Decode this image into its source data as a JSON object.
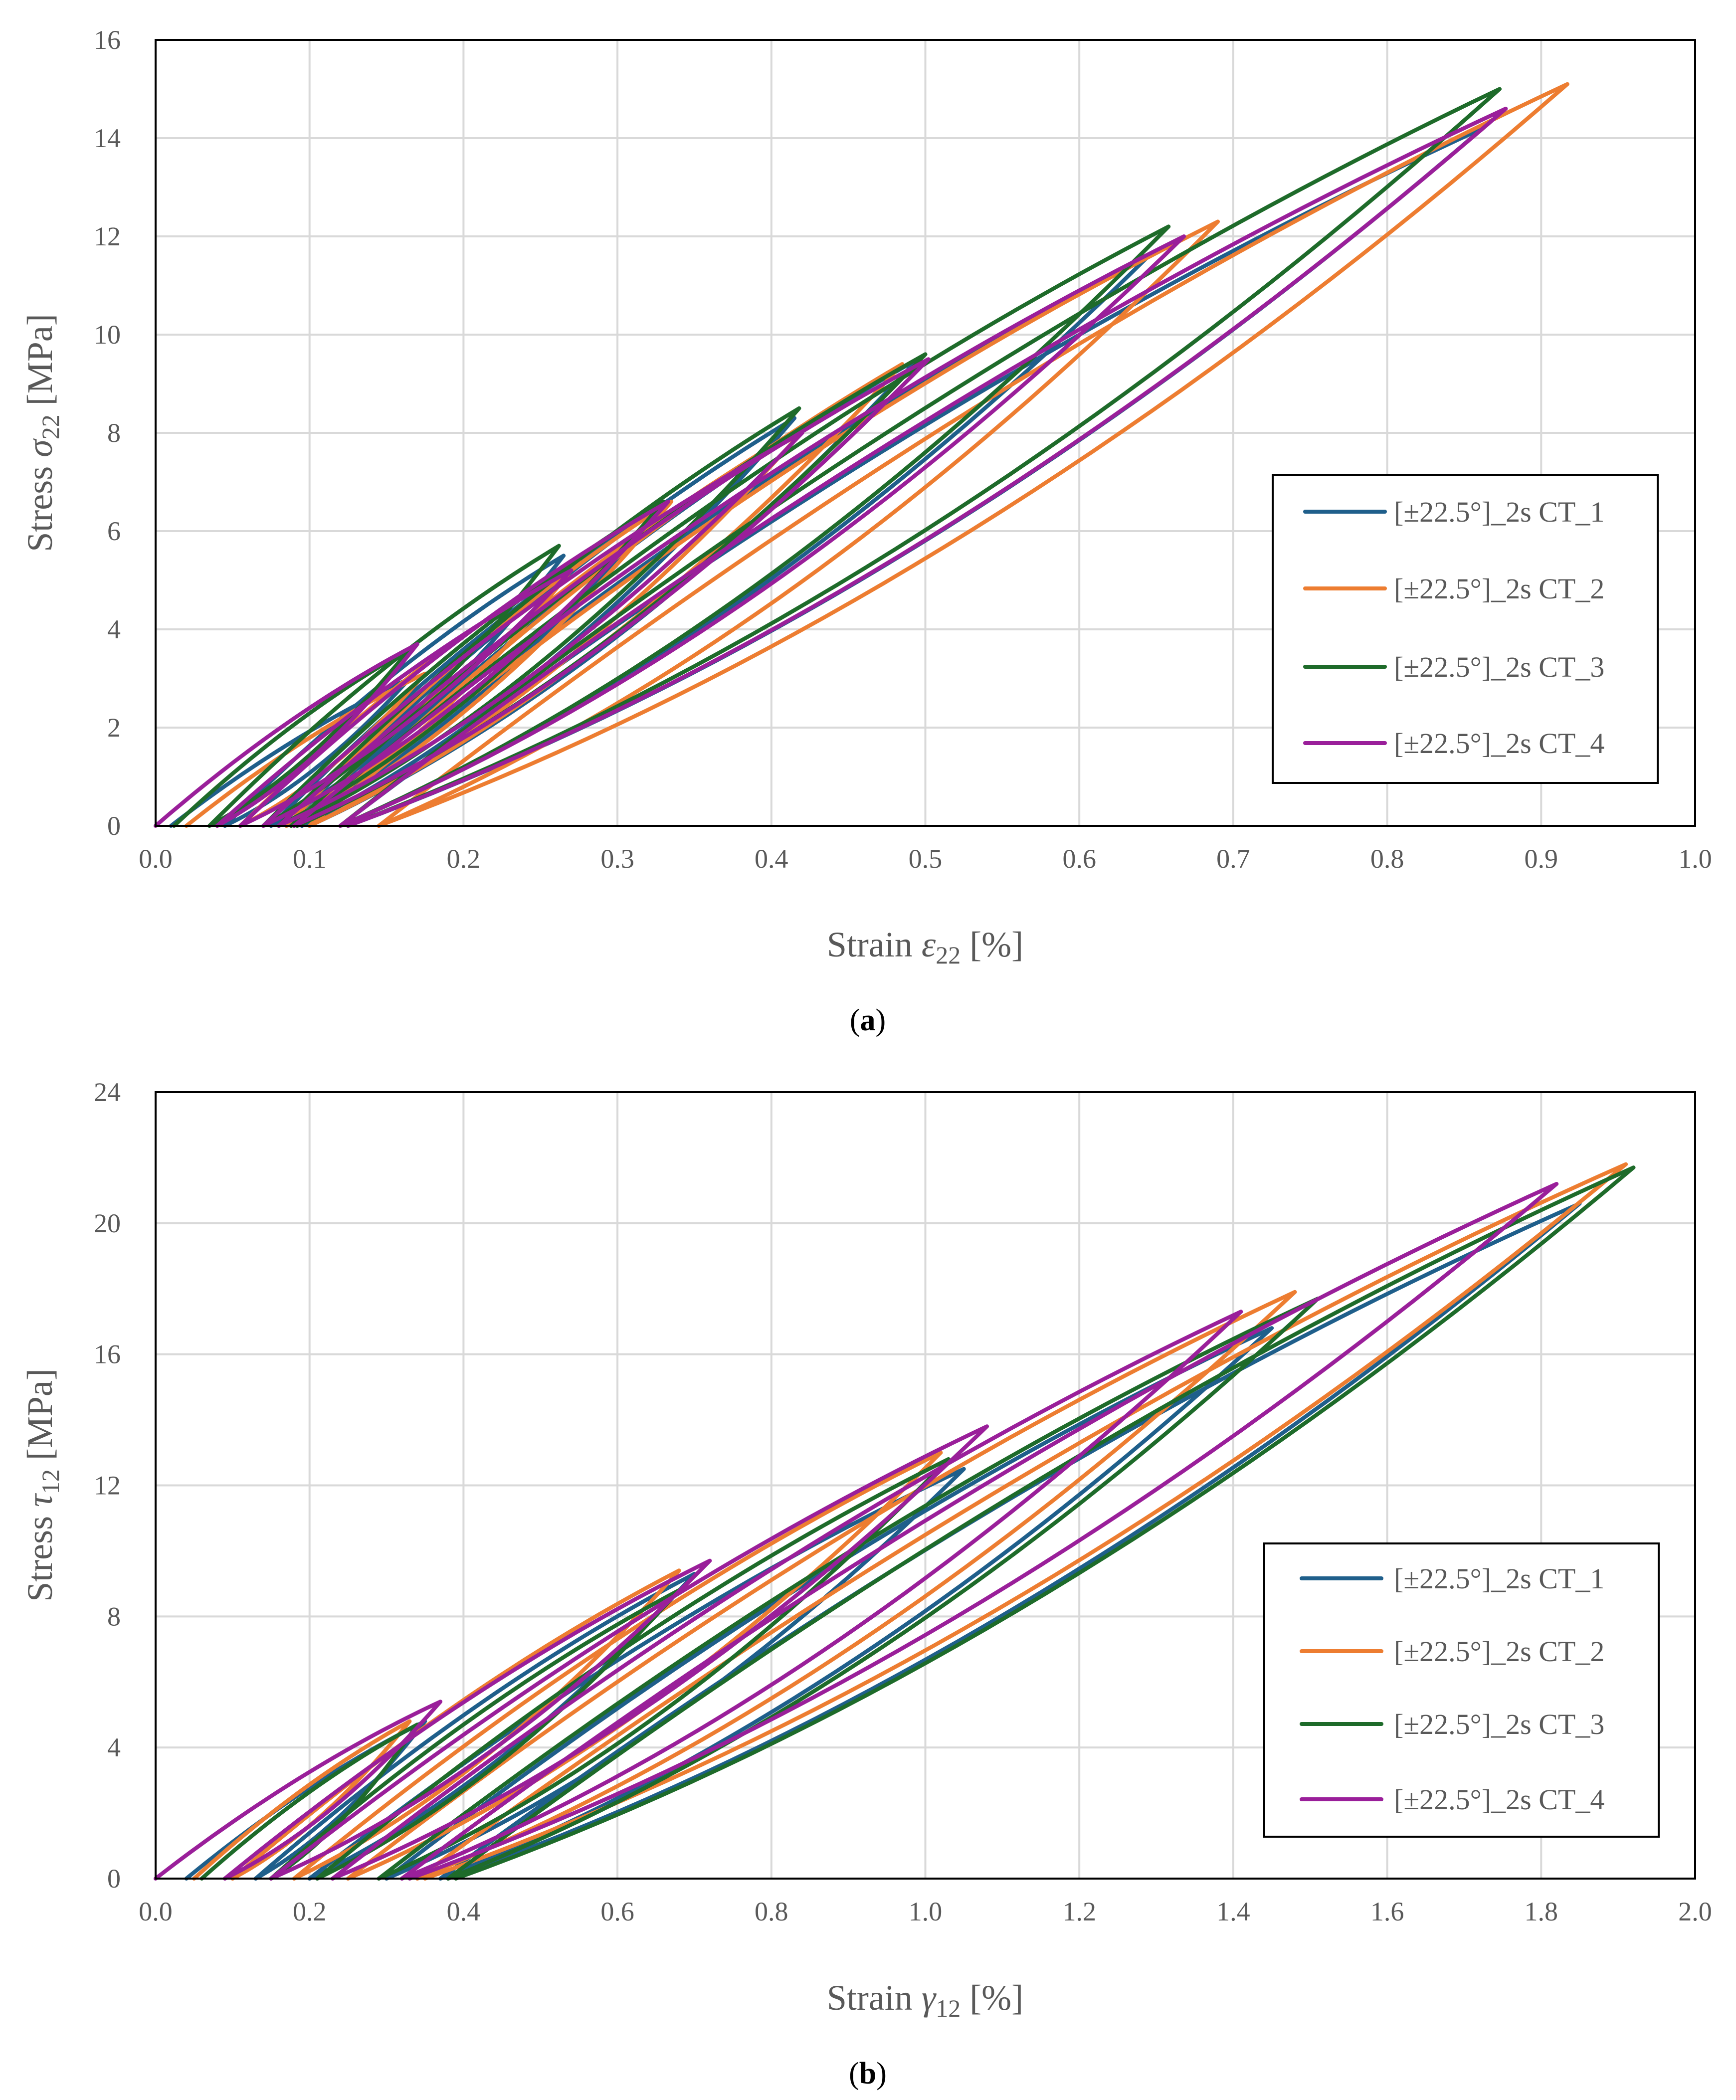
{
  "colors": {
    "CT_1": "#1f5f8b",
    "CT_2": "#ed7d31",
    "CT_3": "#1e6b2a",
    "CT_4": "#9a1f9a",
    "grid": "#d9d9d9",
    "text": "#595959"
  },
  "chart_data": [
    {
      "type": "line",
      "panel": "a",
      "caption": {
        "open": "(",
        "letter": "a",
        "close": ")"
      },
      "xlabel": {
        "prefix": "Strain ",
        "symbol": "ε",
        "sub": "22",
        "suffix": " [%]"
      },
      "ylabel": {
        "prefix": "Stress ",
        "symbol": "σ",
        "sub": "22",
        "suffix": " [MPa]"
      },
      "xlim": [
        0,
        1.0
      ],
      "ylim": [
        0,
        16
      ],
      "xticks": [
        "0.0",
        "0.1",
        "0.2",
        "0.3",
        "0.4",
        "0.5",
        "0.6",
        "0.7",
        "0.8",
        "0.9",
        "1.0"
      ],
      "yticks": [
        "0",
        "2",
        "4",
        "6",
        "8",
        "10",
        "12",
        "14",
        "16"
      ],
      "grid": true,
      "legend_position": "right",
      "series": [
        {
          "name": "[±22.5°]_2s CT_1",
          "color_key": "CT_1",
          "loops": [
            {
              "e0": 0.01,
              "peak": [
                0.165,
                3.0
              ],
              "end": 0.045
            },
            {
              "e0": 0.045,
              "peak": [
                0.265,
                5.5
              ],
              "end": 0.075
            },
            {
              "e0": 0.075,
              "peak": [
                0.33,
                6.5
              ],
              "end": 0.085
            },
            {
              "e0": 0.085,
              "peak": [
                0.415,
                8.3
              ],
              "end": 0.095
            },
            {
              "e0": 0.095,
              "peak": [
                0.495,
                9.5
              ],
              "end": 0.1
            },
            {
              "e0": 0.1,
              "peak": [
                0.645,
                11.6
              ],
              "end": 0.12
            },
            {
              "e0": 0.12,
              "peak": [
                0.862,
                14.2
              ],
              "end": 0.125
            }
          ]
        },
        {
          "name": "[±22.5°]_2s CT_2",
          "color_key": "CT_2",
          "loops": [
            {
              "e0": 0.02,
              "peak": [
                0.175,
                3.1
              ],
              "end": 0.055
            },
            {
              "e0": 0.055,
              "peak": [
                0.275,
                5.4
              ],
              "end": 0.085
            },
            {
              "e0": 0.085,
              "peak": [
                0.335,
                6.6
              ],
              "end": 0.09
            },
            {
              "e0": 0.09,
              "peak": [
                0.425,
                8.2
              ],
              "end": 0.1
            },
            {
              "e0": 0.1,
              "peak": [
                0.485,
                9.4
              ],
              "end": 0.1
            },
            {
              "e0": 0.1,
              "peak": [
                0.69,
                12.3
              ],
              "end": 0.145
            },
            {
              "e0": 0.145,
              "peak": [
                0.917,
                15.1
              ],
              "end": 0.145
            }
          ]
        },
        {
          "name": "[±22.5°]_2s CT_3",
          "color_key": "CT_3",
          "loops": [
            {
              "e0": 0.012,
              "peak": [
                0.165,
                3.6
              ],
              "end": 0.035
            },
            {
              "e0": 0.035,
              "peak": [
                0.262,
                5.7
              ],
              "end": 0.07
            },
            {
              "e0": 0.07,
              "peak": [
                0.33,
                6.6
              ],
              "end": 0.08
            },
            {
              "e0": 0.08,
              "peak": [
                0.418,
                8.5
              ],
              "end": 0.088
            },
            {
              "e0": 0.088,
              "peak": [
                0.5,
                9.6
              ],
              "end": 0.092
            },
            {
              "e0": 0.092,
              "peak": [
                0.658,
                12.2
              ],
              "end": 0.12
            },
            {
              "e0": 0.12,
              "peak": [
                0.873,
                15.0
              ],
              "end": 0.125
            }
          ]
        },
        {
          "name": "[±22.5°]_2s CT_4",
          "color_key": "CT_4",
          "loops": [
            {
              "e0": 0.0,
              "peak": [
                0.17,
                3.7
              ],
              "end": 0.04
            },
            {
              "e0": 0.04,
              "peak": [
                0.27,
                5.2
              ],
              "end": 0.055
            },
            {
              "e0": 0.055,
              "peak": [
                0.333,
                6.6
              ],
              "end": 0.07
            },
            {
              "e0": 0.07,
              "peak": [
                0.42,
                8.0
              ],
              "end": 0.08
            },
            {
              "e0": 0.08,
              "peak": [
                0.502,
                9.5
              ],
              "end": 0.09
            },
            {
              "e0": 0.09,
              "peak": [
                0.668,
                12.0
              ],
              "end": 0.12
            },
            {
              "e0": 0.12,
              "peak": [
                0.877,
                14.6
              ],
              "end": 0.125
            }
          ]
        }
      ]
    },
    {
      "type": "line",
      "panel": "b",
      "caption": {
        "open": "(",
        "letter": "b",
        "close": ")"
      },
      "xlabel": {
        "prefix": "Strain ",
        "symbol": "γ",
        "sub": "12",
        "suffix": " [%]"
      },
      "ylabel": {
        "prefix": "Stress ",
        "symbol": "τ",
        "sub": "12",
        "suffix": " [MPa]"
      },
      "xlim": [
        0,
        2.0
      ],
      "ylim": [
        0,
        24
      ],
      "xticks": [
        "0.0",
        "0.2",
        "0.4",
        "0.6",
        "0.8",
        "1.0",
        "1.2",
        "1.4",
        "1.6",
        "1.8",
        "2.0"
      ],
      "yticks": [
        "0",
        "4",
        "8",
        "12",
        "16",
        "20",
        "24"
      ],
      "grid": true,
      "legend_position": "right",
      "series": [
        {
          "name": "[±22.5°]_2s CT_1",
          "color_key": "CT_1",
          "loops": [
            {
              "e0": 0.04,
              "peak": [
                0.35,
                4.8
              ],
              "end": 0.13
            },
            {
              "e0": 0.13,
              "peak": [
                0.7,
                9.3
              ],
              "end": 0.2
            },
            {
              "e0": 0.2,
              "peak": [
                1.05,
                12.5
              ],
              "end": 0.3
            },
            {
              "e0": 0.3,
              "peak": [
                1.45,
                16.8
              ],
              "end": 0.37
            },
            {
              "e0": 0.37,
              "peak": [
                1.85,
                20.6
              ],
              "end": 0.38
            }
          ]
        },
        {
          "name": "[±22.5°]_2s CT_2",
          "color_key": "CT_2",
          "loops": [
            {
              "e0": 0.05,
              "peak": [
                0.33,
                4.8
              ],
              "end": 0.1
            },
            {
              "e0": 0.1,
              "peak": [
                0.68,
                9.4
              ],
              "end": 0.18
            },
            {
              "e0": 0.18,
              "peak": [
                1.02,
                13.0
              ],
              "end": 0.25
            },
            {
              "e0": 0.25,
              "peak": [
                1.48,
                17.9
              ],
              "end": 0.34
            },
            {
              "e0": 0.34,
              "peak": [
                1.91,
                21.8
              ],
              "end": 0.35
            }
          ]
        },
        {
          "name": "[±22.5°]_2s CT_3",
          "color_key": "CT_3",
          "loops": [
            {
              "e0": 0.06,
              "peak": [
                0.34,
                4.7
              ],
              "end": 0.15
            },
            {
              "e0": 0.15,
              "peak": [
                0.68,
                8.8
              ],
              "end": 0.21
            },
            {
              "e0": 0.21,
              "peak": [
                1.03,
                12.8
              ],
              "end": 0.29
            },
            {
              "e0": 0.29,
              "peak": [
                1.51,
                17.7
              ],
              "end": 0.38
            },
            {
              "e0": 0.38,
              "peak": [
                1.92,
                21.7
              ],
              "end": 0.39
            }
          ]
        },
        {
          "name": "[±22.5°]_2s CT_4",
          "color_key": "CT_4",
          "loops": [
            {
              "e0": 0.0,
              "peak": [
                0.37,
                5.4
              ],
              "end": 0.09
            },
            {
              "e0": 0.09,
              "peak": [
                0.72,
                9.7
              ],
              "end": 0.15
            },
            {
              "e0": 0.15,
              "peak": [
                1.08,
                13.8
              ],
              "end": 0.23
            },
            {
              "e0": 0.23,
              "peak": [
                1.41,
                17.3
              ],
              "end": 0.32
            },
            {
              "e0": 0.32,
              "peak": [
                1.82,
                21.2
              ],
              "end": 0.33
            }
          ]
        }
      ]
    }
  ]
}
